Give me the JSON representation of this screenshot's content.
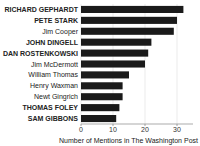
{
  "chart_data": {
    "type": "bar",
    "orientation": "horizontal",
    "categories": [
      "RICHARD GEPHARDT",
      "PETE STARK",
      "Jim Cooper",
      "JOHN DINGELL",
      "DAN ROSTENKOWSKI",
      "Jim McDermott",
      "William Thomas",
      "Henry Waxman",
      "Newt Gingrich",
      "THOMAS FOLEY",
      "SAM GIBBONS"
    ],
    "values": [
      32,
      30,
      29,
      22,
      21,
      20,
      15,
      13,
      13,
      12,
      11
    ],
    "color": "#1a1a1a",
    "xlabel": "Number of Mentions in The Washington Post",
    "xlim": [
      0,
      35
    ],
    "xticks": [
      0,
      10,
      20,
      30
    ],
    "grid": true
  }
}
